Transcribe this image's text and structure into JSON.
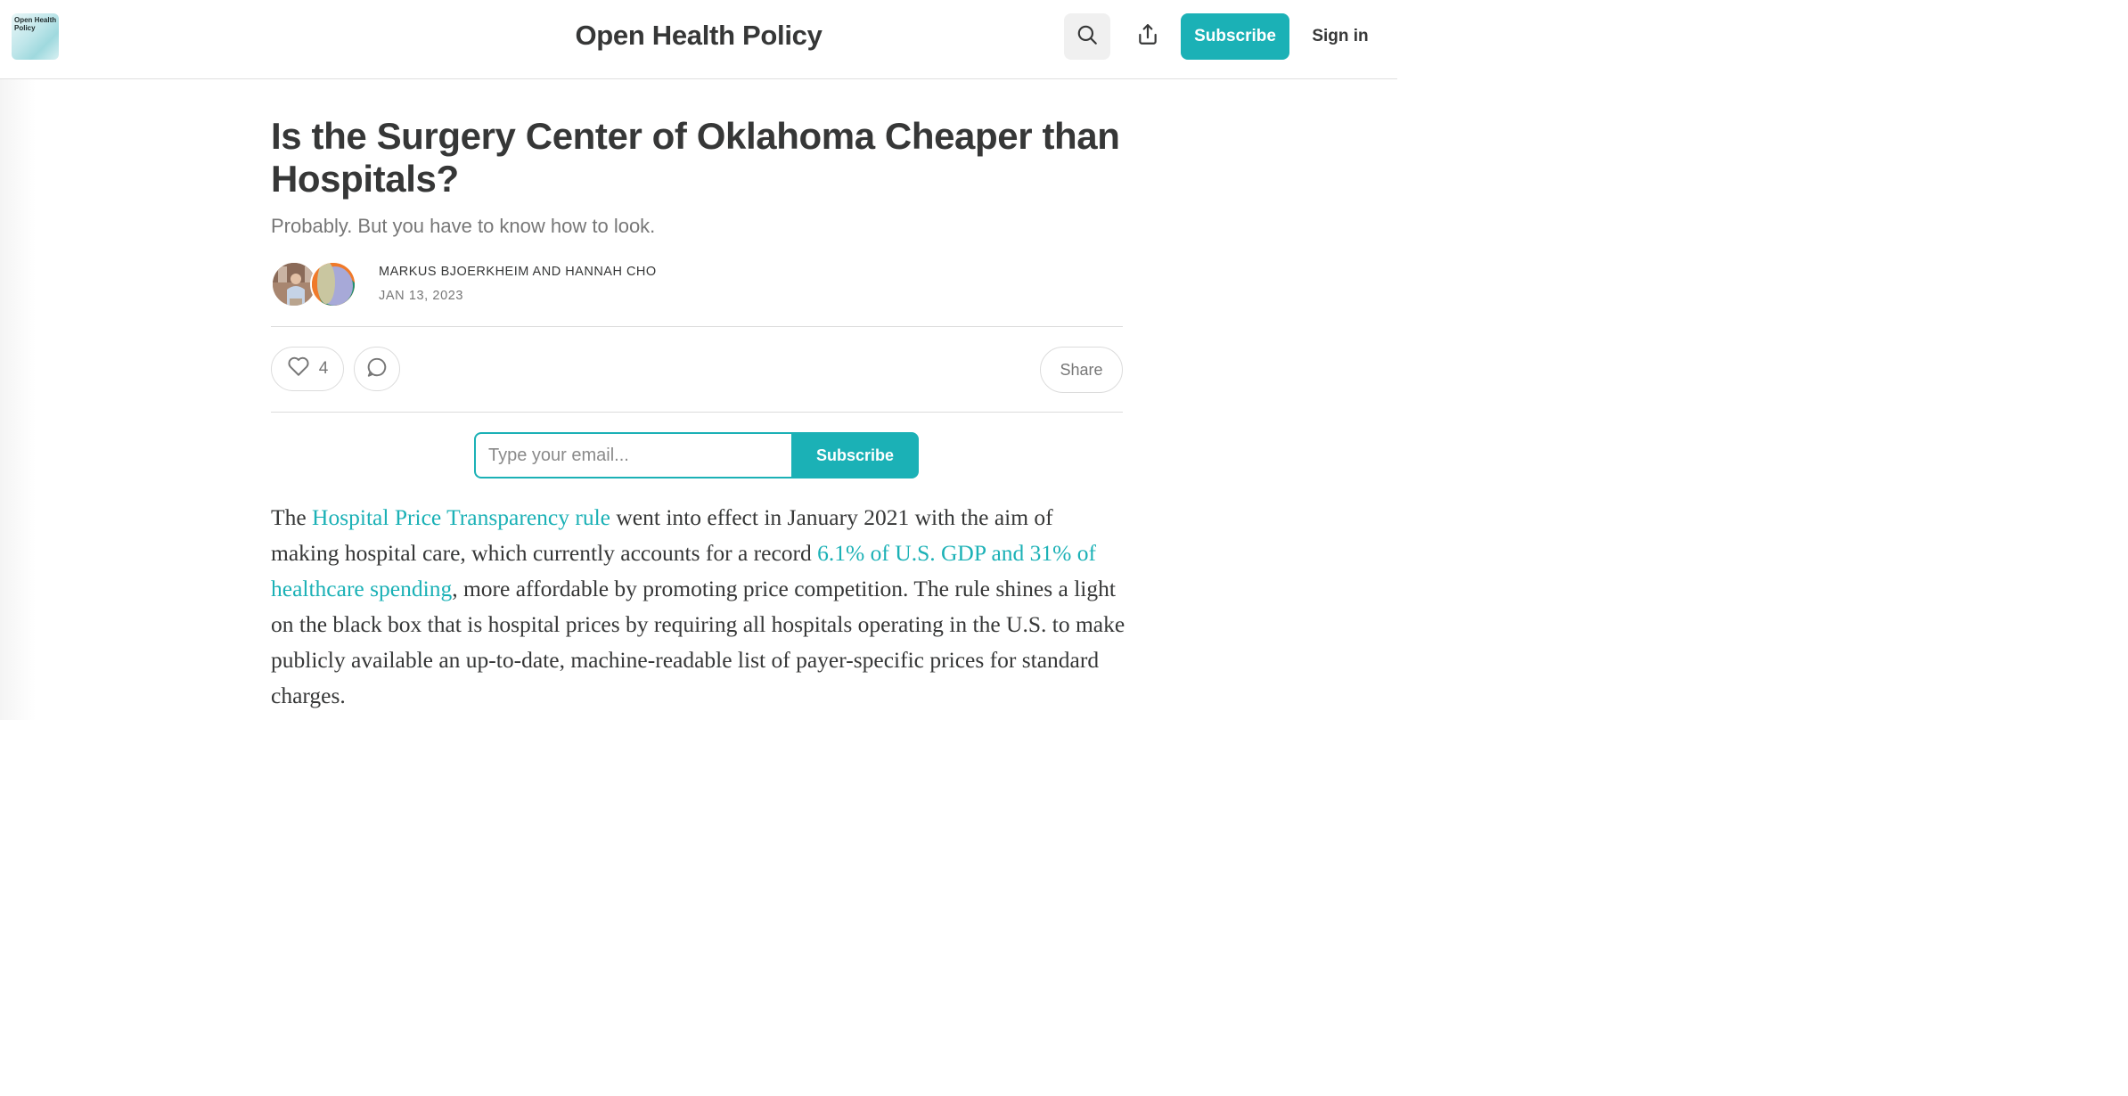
{
  "header": {
    "logo_text": "Open Health Policy",
    "publication_title": "Open Health Policy",
    "subscribe_label": "Subscribe",
    "signin_label": "Sign in",
    "icons": {
      "search": "search-icon",
      "share": "share-icon"
    }
  },
  "article": {
    "title": "Is the Surgery Center of Oklahoma Cheaper than Hospitals?",
    "subtitle": "Probably. But you have to know how to look.",
    "authors": "MARKUS BJOERKHEIM AND HANNAH CHO",
    "date": "JAN 13, 2023",
    "like_count": "4",
    "share_label": "Share"
  },
  "subscribe_form": {
    "email_placeholder": "Type your email...",
    "button_label": "Subscribe"
  },
  "body": {
    "p1_part1": "The ",
    "p1_link1": "Hospital Price Transparency rule",
    "p1_part2": " went into effect in January 2021 with the aim of making hospital care, which currently accounts for a record ",
    "p1_link2": "6.1% of U.S. GDP and 31% of healthcare spending",
    "p1_part3": ", more affordable by promoting price competition. The rule shines a light on the black box that is hospital prices by requiring all hospitals operating in the U.S. to make publicly available an up-to-date, machine-readable list of payer-specific prices for standard charges."
  },
  "colors": {
    "accent": "#1bb1b6",
    "text": "#363737",
    "muted": "#777777"
  }
}
